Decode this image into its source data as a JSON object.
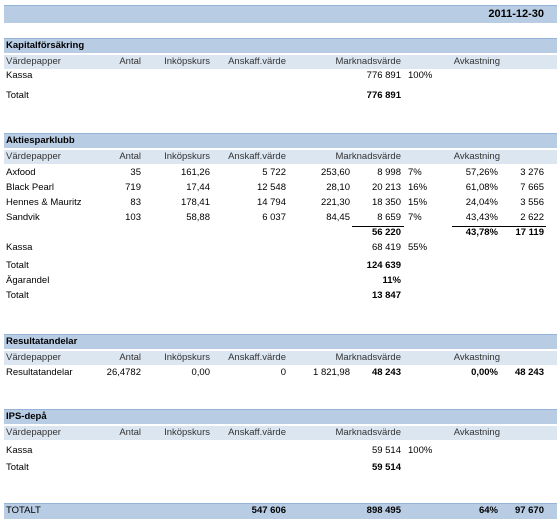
{
  "date": "2011-12-30",
  "sections": [
    {
      "title": "Kapitalförsäkring",
      "header": [
        "Värdepapper",
        "Antal",
        "Inköpskurs",
        "Anskaff.värde",
        "Marknadsvärde",
        "Avkastning"
      ],
      "rows": [
        [
          "Kassa",
          null,
          null,
          null,
          null,
          "776 891",
          "100%",
          null,
          null
        ],
        [
          "Totalt",
          null,
          null,
          null,
          null,
          "776 891",
          null,
          null,
          null
        ]
      ]
    },
    {
      "title": "Aktiesparklubb",
      "header": [
        "Värdepapper",
        "Antal",
        "Inköpskurs",
        "Anskaff.värde",
        "Marknadsvärde",
        "Avkastning"
      ],
      "rows": [
        [
          "Axfood",
          "35",
          "161,26",
          "5 722",
          "253,60",
          "8 998",
          "7%",
          "57,26%",
          "3 276"
        ],
        [
          "Black Pearl",
          "719",
          "17,44",
          "12 548",
          "28,10",
          "20 213",
          "16%",
          "61,08%",
          "7 665"
        ],
        [
          "Hennes & Mauritz",
          "83",
          "178,41",
          "14 794",
          "221,30",
          "18 350",
          "15%",
          "24,04%",
          "3 556"
        ],
        [
          "Sandvik",
          "103",
          "58,88",
          "6 037",
          "84,45",
          "8 659",
          "7%",
          "43,43%",
          "2 622"
        ],
        [
          null,
          null,
          null,
          null,
          null,
          "56 220",
          null,
          "43,78%",
          "17 119"
        ],
        [
          "Kassa",
          null,
          null,
          null,
          null,
          "68 419",
          "55%",
          null,
          null
        ],
        [
          "Totalt",
          null,
          null,
          null,
          null,
          "124 639",
          null,
          null,
          null
        ],
        [
          "Ägarandel",
          null,
          null,
          null,
          null,
          "11%",
          null,
          null,
          null
        ],
        [
          "Totalt",
          null,
          null,
          null,
          null,
          "13 847",
          null,
          null,
          null
        ]
      ]
    },
    {
      "title": "Resultatandelar",
      "header": [
        "Värdepapper",
        "Antal",
        "Inköpskurs",
        "Anskaff.värde",
        "Marknadsvärde",
        "Avkastning"
      ],
      "rows": [
        [
          "Resultatandelar",
          "26,4782",
          "0,00",
          "0",
          "1 821,98",
          "48 243",
          null,
          "0,00%",
          "48 243"
        ]
      ]
    },
    {
      "title": "IPS-depå",
      "header": [
        "Värdepapper",
        "Antal",
        "Inköpskurs",
        "Anskaff.värde",
        "Marknadsvärde",
        "Avkastning"
      ],
      "rows": [
        [
          "Kassa",
          null,
          null,
          null,
          null,
          "59 514",
          "100%",
          null,
          null
        ],
        [
          "Totalt",
          null,
          null,
          null,
          null,
          "59 514",
          null,
          null,
          null
        ]
      ]
    }
  ],
  "total": [
    "TOTALT",
    null,
    null,
    "547 606",
    null,
    "898 495",
    null,
    "64%",
    "97 670"
  ]
}
